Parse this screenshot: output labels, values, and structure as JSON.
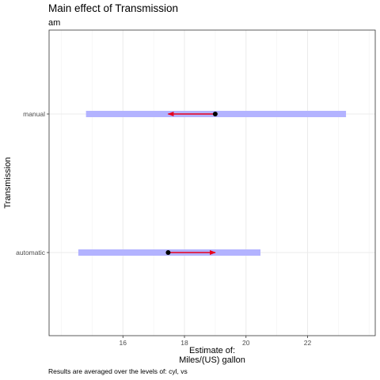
{
  "chart_data": {
    "type": "interval",
    "title": "Main effect of Transmission",
    "subtitle": "am",
    "xlabel": "Estimate of:\nMiles/(US) gallon",
    "ylabel": "Transmission",
    "caption": "Results are averaged over the levels of: cyl, vs",
    "xlim": [
      13.6,
      24.2
    ],
    "xticks": [
      16,
      18,
      20,
      22
    ],
    "categories": [
      "automatic",
      "manual"
    ],
    "intervals": [
      {
        "category": "automatic",
        "estimate": 17.47,
        "lower": 14.55,
        "upper": 20.47
      },
      {
        "category": "manual",
        "estimate": 19.0,
        "lower": 14.8,
        "upper": 23.25
      }
    ],
    "comparison_arrows": [
      {
        "category": "automatic",
        "from": 17.47,
        "to": 19.0
      },
      {
        "category": "manual",
        "from": 19.0,
        "to": 17.47
      }
    ],
    "grid": true,
    "colors": {
      "interval": "#b3b3ff",
      "arrow": "#e8001c",
      "point": "#000000",
      "grid": "#ebebeb",
      "panel_border": "#333333"
    }
  }
}
